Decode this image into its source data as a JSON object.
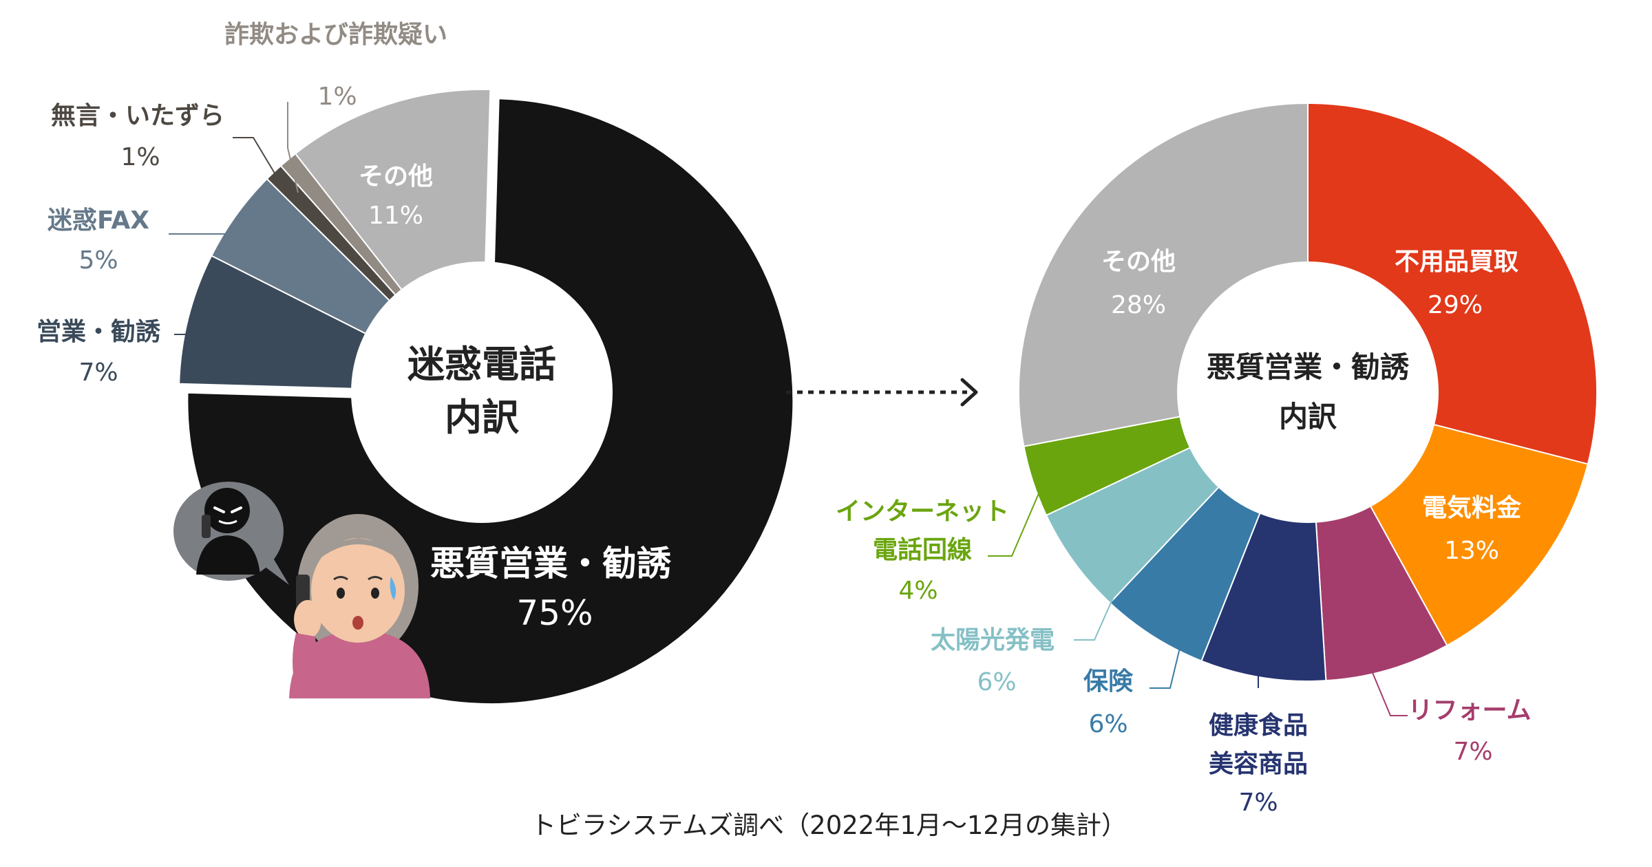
{
  "chart_data": [
    {
      "type": "pie",
      "variant": "donut",
      "title": "迷惑電話",
      "subtitle": "内訳",
      "slices": [
        {
          "label": "悪質営業・勧誘",
          "value": 75,
          "value_text": "75%",
          "color": "#141414",
          "label_color": "#ffffff",
          "exploded": true
        },
        {
          "label": "営業・勧誘",
          "value": 7,
          "value_text": "7%",
          "color": "#3a4a5a",
          "label_color": "#3a4a5a"
        },
        {
          "label": "迷惑FAX",
          "value": 5,
          "value_text": "5%",
          "color": "#65798a",
          "label_color": "#65798a"
        },
        {
          "label": "無言・いたずら",
          "value": 1,
          "value_text": "1%",
          "color": "#4e4842",
          "label_color": "#4e4842"
        },
        {
          "label": "詐欺および詐欺疑い",
          "value": 1,
          "value_text": "1%",
          "color": "#928b84",
          "label_color": "#928b84"
        },
        {
          "label": "その他",
          "value": 11,
          "value_text": "11%",
          "color": "#b4b4b4",
          "label_color": "#ffffff"
        }
      ]
    },
    {
      "type": "pie",
      "variant": "donut",
      "title": "悪質営業・勧誘",
      "subtitle": "内訳",
      "slices": [
        {
          "label": "不用品買取",
          "value": 29,
          "value_text": "29%",
          "color": "#e2391b",
          "label_color": "#ffffff"
        },
        {
          "label": "電気料金",
          "value": 13,
          "value_text": "13%",
          "color": "#ff8f00",
          "label_color": "#ffffff"
        },
        {
          "label": "リフォーム",
          "value": 7,
          "value_text": "7%",
          "color": "#a53d6c",
          "label_color": "#a53d6c"
        },
        {
          "label": "健康食品\n美容商品",
          "value": 7,
          "value_text": "7%",
          "color": "#263470",
          "label_color": "#263470"
        },
        {
          "label": "保険",
          "value": 6,
          "value_text": "6%",
          "color": "#387ba7",
          "label_color": "#387ba7"
        },
        {
          "label": "太陽光発電",
          "value": 6,
          "value_text": "6%",
          "color": "#85c0c5",
          "label_color": "#85c0c5"
        },
        {
          "label": "インターネット\n電話回線",
          "value": 4,
          "value_text": "4%",
          "color": "#6aa50e",
          "label_color": "#6aa50e"
        },
        {
          "label": "その他",
          "value": 28,
          "value_text": "28%",
          "color": "#b4b4b4",
          "label_color": "#ffffff"
        }
      ]
    }
  ],
  "source_note": "トビラシステムズ調べ（2022年1月〜12月の集計）"
}
